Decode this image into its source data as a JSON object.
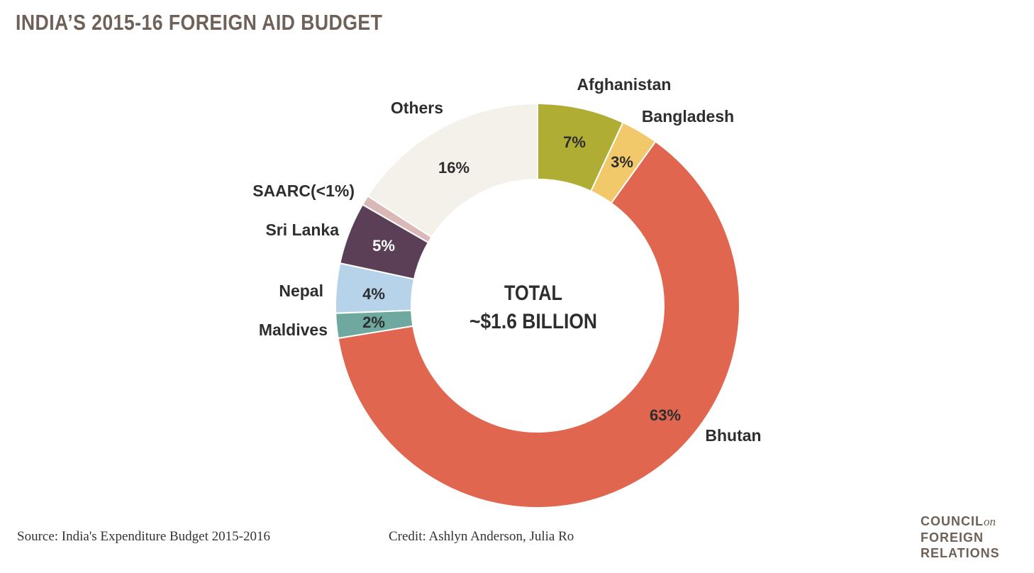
{
  "header": {
    "title": "INDIA’S 2015-16 FOREIGN AID BUDGET"
  },
  "chart_data": {
    "type": "pie",
    "style": "donut",
    "title": "INDIA’S 2015-16 FOREIGN AID BUDGET",
    "center_text": [
      "TOTAL",
      "~$1.6 BILLION"
    ],
    "slices": [
      {
        "label": "Afghanistan",
        "percent": 7,
        "value_label": "7%",
        "color": "#b0ad34"
      },
      {
        "label": "Bangladesh",
        "percent": 3,
        "value_label": "3%",
        "color": "#f2c96a"
      },
      {
        "label": "Bhutan",
        "percent": 63,
        "value_label": "63%",
        "color": "#e06650"
      },
      {
        "label": "Maldives",
        "percent": 2,
        "value_label": "2%",
        "color": "#6ea89e"
      },
      {
        "label": "Nepal",
        "percent": 4,
        "value_label": "4%",
        "color": "#b6d3ea"
      },
      {
        "label": "Sri Lanka",
        "percent": 5,
        "value_label": "5%",
        "color": "#5a3f56"
      },
      {
        "label": "SAARC(<1%)",
        "percent": 0.8,
        "value_label": "",
        "color": "#dbb8b8"
      },
      {
        "label": "Others",
        "percent": 16,
        "value_label": "16%",
        "color": "#f4f1ea"
      }
    ]
  },
  "footer": {
    "source": "Source: India's Expenditure Budget 2015-2016",
    "credit": "Credit: Ashlyn Anderson, Julia Ro"
  },
  "logo": {
    "line1": "COUNCIL",
    "line1_suffix": "on",
    "line2": "FOREIGN",
    "line3": "RELATIONS"
  }
}
